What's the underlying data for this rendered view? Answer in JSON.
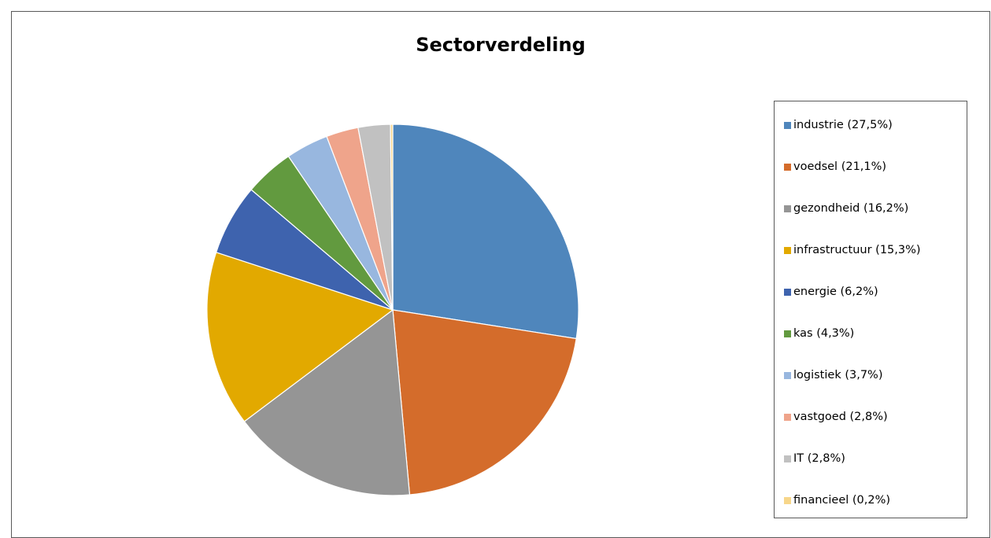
{
  "chart_data": {
    "type": "pie",
    "title": "Sectorverdeling",
    "legend_position": "right",
    "start_angle_deg": 0,
    "direction": "clockwise",
    "slices": [
      {
        "label": "industrie (27,5%)",
        "value": 27.5,
        "color": "#4F86BC"
      },
      {
        "label": "voedsel (21,1%)",
        "value": 21.1,
        "color": "#D46C2B"
      },
      {
        "label": "gezondheid (16,2%)",
        "value": 16.2,
        "color": "#959595"
      },
      {
        "label": "infrastructuur (15,3%)",
        "value": 15.3,
        "color": "#E2A900"
      },
      {
        "label": "energie (6,2%)",
        "value": 6.2,
        "color": "#3E63AE"
      },
      {
        "label": "kas (4,3%)",
        "value": 4.3,
        "color": "#629A3F"
      },
      {
        "label": "logistiek (3,7%)",
        "value": 3.7,
        "color": "#98B7DF"
      },
      {
        "label": "vastgoed (2,8%)",
        "value": 2.8,
        "color": "#EFA48B"
      },
      {
        "label": "IT (2,8%)",
        "value": 2.8,
        "color": "#C1C1C1"
      },
      {
        "label": "financieel (0,2%)",
        "value": 0.2,
        "color": "#F7D68A"
      }
    ]
  }
}
